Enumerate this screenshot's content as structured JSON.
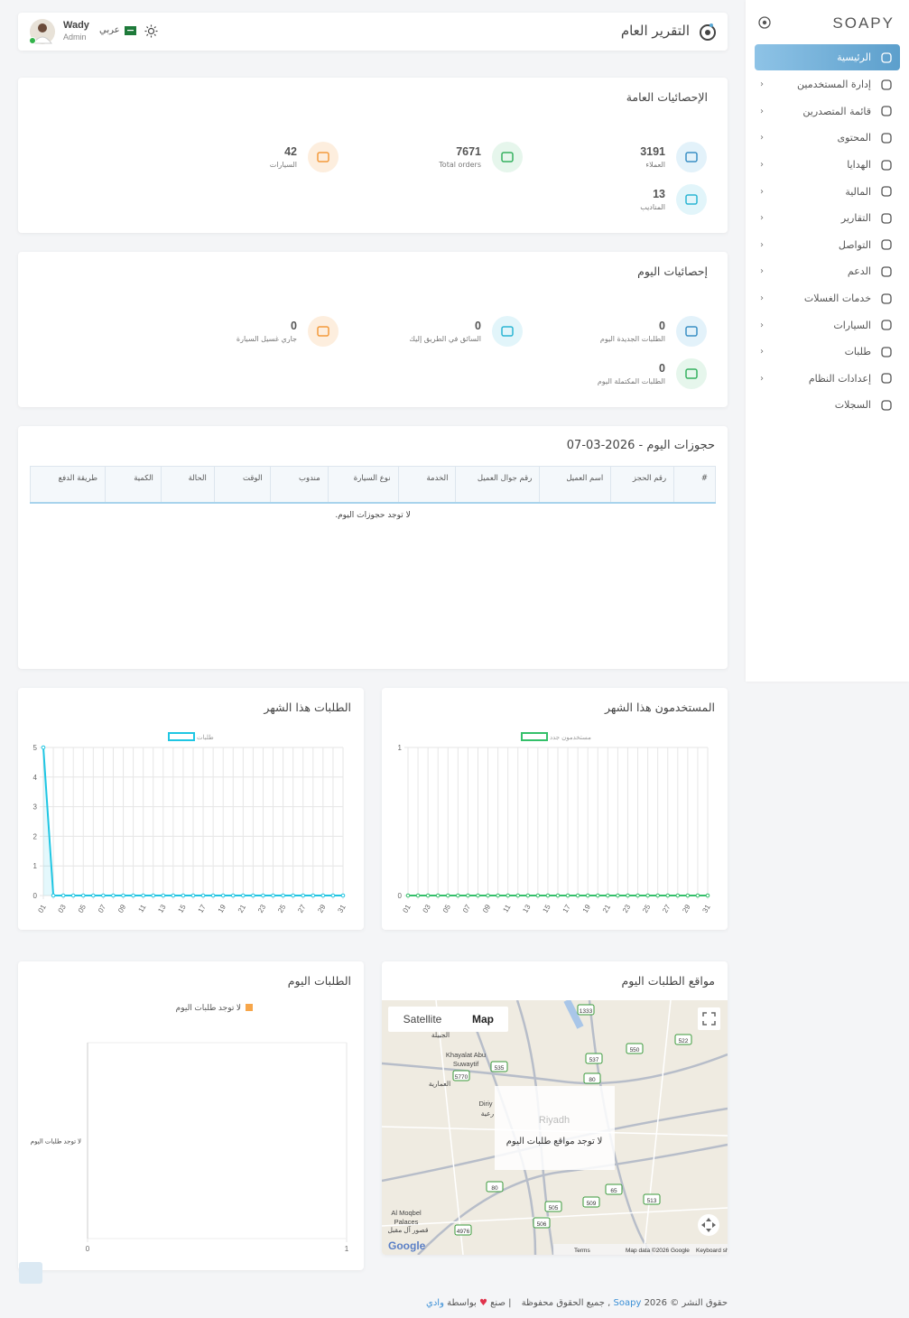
{
  "sidebar": {
    "logo": "SOAPY",
    "items": [
      "الرئيسية",
      "إدارة المستخدمين",
      "قائمة المتصدرين",
      "المحتوى",
      "الهدايا",
      "المالية",
      "التقارير",
      "التواصل",
      "الدعم",
      "خدمات الغسلات",
      "السيارات",
      "طلبات",
      "إعدادات النظام",
      "السجلات"
    ]
  },
  "header": {
    "title": "التقرير العام",
    "user_name": "Wady",
    "user_role": "Admin",
    "language": "عربي"
  },
  "general_stats": {
    "title": "الإحصائيات العامة",
    "items": [
      {
        "value": 3191,
        "label": "العملاء"
      },
      {
        "value": 7671,
        "label": "Total orders"
      },
      {
        "value": 42,
        "label": "السيارات"
      },
      {
        "value": 13,
        "label": "المناديب"
      }
    ]
  },
  "today_stats": {
    "title": "إحصائيات اليوم",
    "items": [
      {
        "value": 0,
        "label": "الطلبات الجديدة اليوم"
      },
      {
        "value": 0,
        "label": "السائق في الطريق إليك"
      },
      {
        "value": 0,
        "label": "جاري غسيل السيارة"
      },
      {
        "value": 0,
        "label": "الطلبات المكتملة اليوم"
      }
    ]
  },
  "bookings": {
    "title": "حجوزات اليوم - 2026-03-07",
    "columns": [
      "#",
      "رقم الحجز",
      "اسم العميل",
      "رقم جوال العميل",
      "الخدمة",
      "نوع السيارة",
      "مندوب",
      "الوقت",
      "الحالة",
      "الكمية",
      "طريقة الدفع"
    ],
    "empty": "لا توجد حجوزات اليوم."
  },
  "chart_data": [
    {
      "type": "line",
      "title": "الطلبات هذا الشهر",
      "categories": [
        "01",
        null,
        "03",
        null,
        "05",
        null,
        "07",
        null,
        "09",
        null,
        "11",
        null,
        "13",
        null,
        "15",
        null,
        "17",
        null,
        "19",
        null,
        "21",
        null,
        "23",
        null,
        "25",
        null,
        "27",
        null,
        "29",
        null,
        "31"
      ],
      "series": [
        {
          "name": "طلبات",
          "color": "#1fc6e3",
          "values": [
            5,
            0,
            0,
            0,
            0,
            0,
            0,
            0,
            0,
            0,
            0,
            0,
            0,
            0,
            0,
            0,
            0,
            0,
            0,
            0,
            0,
            0,
            0,
            0,
            0,
            0,
            0,
            0,
            0,
            0,
            0
          ]
        }
      ],
      "ylim": [
        0,
        5
      ],
      "yticks": [
        0,
        1,
        2,
        3,
        4,
        5
      ],
      "grid": true
    },
    {
      "type": "line",
      "title": "المستخدمون هذا الشهر",
      "categories": [
        "01",
        null,
        "03",
        null,
        "05",
        null,
        "07",
        null,
        "09",
        null,
        "11",
        null,
        "13",
        null,
        "15",
        null,
        "17",
        null,
        "19",
        null,
        "21",
        null,
        "23",
        null,
        "25",
        null,
        "27",
        null,
        "29",
        null,
        "31"
      ],
      "series": [
        {
          "name": "مستخدمون جدد",
          "color": "#34c06a",
          "values": [
            0,
            0,
            0,
            0,
            0,
            0,
            0,
            0,
            0,
            0,
            0,
            0,
            0,
            0,
            0,
            0,
            0,
            0,
            0,
            0,
            0,
            0,
            0,
            0,
            0,
            0,
            0,
            0,
            0,
            0,
            0
          ]
        }
      ],
      "ylim": [
        0,
        1
      ],
      "yticks": [
        0,
        1
      ],
      "grid": true
    },
    {
      "type": "bar",
      "orientation": "horizontal",
      "title": "الطلبات اليوم",
      "categories": [
        "لا توجد طلبات اليوم"
      ],
      "series": [
        {
          "name": "لا توجد طلبات اليوم",
          "color": "#f7a64a",
          "values": [
            0
          ]
        }
      ],
      "xlim": [
        0,
        1
      ],
      "xticks": [
        0,
        1
      ],
      "grid": true
    }
  ],
  "map": {
    "title": "مواقع الطلبات اليوم",
    "buttons": [
      "Satellite",
      "Map"
    ],
    "empty": "لا توجد مواقع طلبات اليوم",
    "places": [
      "الجبيلة",
      "Khayalat Abu",
      "Suwaytif",
      "العمارية",
      "Diriy",
      "رعية",
      "Riyadh",
      "Al Moqbel",
      "Palaces",
      "قصور آل مقبل"
    ],
    "shields": [
      "1333",
      "537",
      "550",
      "522",
      "535",
      "80",
      "5770",
      "65",
      "513",
      "505",
      "509",
      "506",
      "4976",
      "80"
    ],
    "logo": "Google",
    "footer": [
      "Terms",
      "Map data ©2026 Google",
      "Keyboard shortcuts"
    ]
  },
  "footer": {
    "copyright": "حقوق النشر © 2026",
    "brand": "Soapy",
    "rights": ", جميع الحقوق محفوظة",
    "made": "| صنع",
    "by": "بواسطة",
    "author": "وادي"
  }
}
